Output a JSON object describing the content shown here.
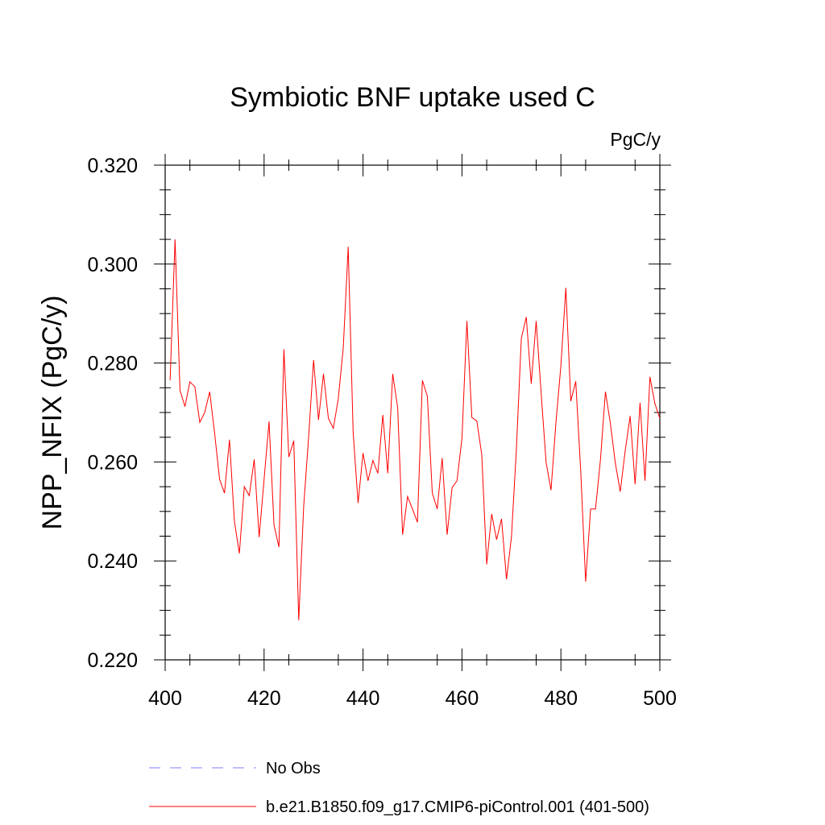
{
  "chart_data": {
    "type": "line",
    "title": "Symbiotic BNF uptake used C",
    "units": "PgC/y",
    "ylabel": "NPP_NFIX  (PgC/y)",
    "xlabel": "",
    "xlim": [
      400,
      500
    ],
    "ylim": [
      0.22,
      0.32
    ],
    "x_ticks": [
      400,
      420,
      440,
      460,
      480,
      500
    ],
    "x_tick_labels": [
      "400",
      "420",
      "440",
      "460",
      "480",
      "500"
    ],
    "y_ticks": [
      0.22,
      0.24,
      0.26,
      0.28,
      0.3,
      0.32
    ],
    "y_tick_labels": [
      "0.220",
      "0.240",
      "0.260",
      "0.280",
      "0.300",
      "0.320"
    ],
    "grid": false,
    "legend_position": "bottom",
    "series": [
      {
        "name": "No Obs",
        "color": "#8080ff",
        "dashed": true,
        "x": [],
        "values": []
      },
      {
        "name": "b.e21.B1850.f09_g17.CMIP6-piControl.001 (401-500)",
        "color": "#ff0000",
        "dashed": false,
        "x": [
          401,
          402,
          403,
          404,
          405,
          406,
          407,
          408,
          409,
          410,
          411,
          412,
          413,
          414,
          415,
          416,
          417,
          418,
          419,
          420,
          421,
          422,
          423,
          424,
          425,
          426,
          427,
          428,
          429,
          430,
          431,
          432,
          433,
          434,
          435,
          436,
          437,
          438,
          439,
          440,
          441,
          442,
          443,
          444,
          445,
          446,
          447,
          448,
          449,
          450,
          451,
          452,
          453,
          454,
          455,
          456,
          457,
          458,
          459,
          460,
          461,
          462,
          463,
          464,
          465,
          466,
          467,
          468,
          469,
          470,
          471,
          472,
          473,
          474,
          475,
          476,
          477,
          478,
          479,
          480,
          481,
          482,
          483,
          484,
          485,
          486,
          487,
          488,
          489,
          490,
          491,
          492,
          493,
          494,
          495,
          496,
          497,
          498,
          499,
          500
        ],
        "values": [
          0.2765,
          0.305,
          0.2745,
          0.2712,
          0.2762,
          0.2752,
          0.268,
          0.27,
          0.2742,
          0.2658,
          0.2565,
          0.2537,
          0.2645,
          0.248,
          0.2415,
          0.255,
          0.2532,
          0.2605,
          0.2448,
          0.2565,
          0.2682,
          0.2473,
          0.2428,
          0.2828,
          0.261,
          0.2643,
          0.228,
          0.251,
          0.265,
          0.2806,
          0.2685,
          0.2778,
          0.2688,
          0.2668,
          0.2728,
          0.283,
          0.3035,
          0.266,
          0.2517,
          0.2618,
          0.2562,
          0.2603,
          0.2577,
          0.2695,
          0.2577,
          0.2778,
          0.271,
          0.2453,
          0.253,
          0.2505,
          0.2478,
          0.2765,
          0.2733,
          0.2537,
          0.2505,
          0.2608,
          0.2453,
          0.2548,
          0.2562,
          0.2648,
          0.2885,
          0.269,
          0.2683,
          0.2615,
          0.2393,
          0.2495,
          0.2443,
          0.2485,
          0.2363,
          0.2448,
          0.2625,
          0.285,
          0.2893,
          0.2758,
          0.2885,
          0.274,
          0.26,
          0.2543,
          0.268,
          0.2795,
          0.2952,
          0.2723,
          0.2763,
          0.2583,
          0.2358,
          0.2505,
          0.2505,
          0.2605,
          0.2742,
          0.2678,
          0.2598,
          0.254,
          0.2623,
          0.2693,
          0.2555,
          0.272,
          0.2562,
          0.2772,
          0.2718,
          0.2688
        ]
      }
    ]
  }
}
